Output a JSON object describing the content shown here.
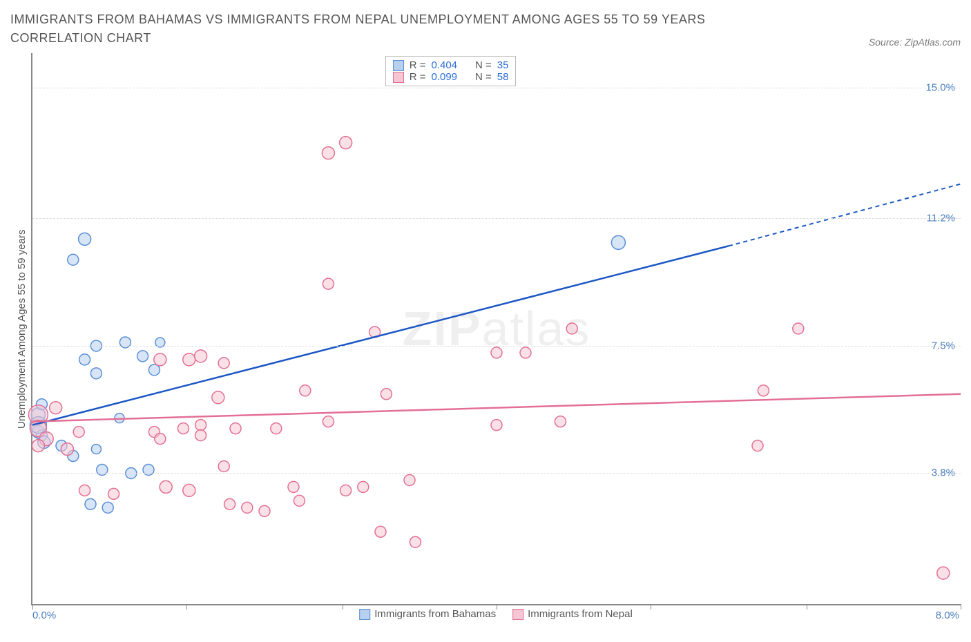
{
  "title": "IMMIGRANTS FROM BAHAMAS VS IMMIGRANTS FROM NEPAL UNEMPLOYMENT AMONG AGES 55 TO 59 YEARS CORRELATION CHART",
  "source_label": "Source: ZipAtlas.com",
  "y_axis_label": "Unemployment Among Ages 55 to 59 years",
  "watermark_a": "ZIP",
  "watermark_b": "atlas",
  "chart": {
    "type": "scatter",
    "background_color": "#ffffff",
    "grid_color": "#dddddd",
    "axis_color": "#888888",
    "xlim": [
      0.0,
      8.0
    ],
    "ylim": [
      0.0,
      16.0
    ],
    "x_ticks": [
      0.0,
      1.33,
      2.67,
      4.0,
      5.33,
      6.67,
      8.0
    ],
    "y_gridlines": [
      3.8,
      7.5,
      11.2,
      15.0
    ],
    "y_tick_labels": [
      "3.8%",
      "7.5%",
      "11.2%",
      "15.0%"
    ],
    "x_min_label": "0.0%",
    "x_max_label": "8.0%",
    "legend_box": {
      "rows": [
        {
          "swatch_fill": "#b6d0ee",
          "swatch_stroke": "#5a8fd6",
          "r_label": "R =",
          "r_val": "0.404",
          "n_label": "N =",
          "n_val": "35"
        },
        {
          "swatch_fill": "#f6c6d4",
          "swatch_stroke": "#e36f94",
          "r_label": "R =",
          "r_val": "0.099",
          "n_label": "N =",
          "n_val": "58"
        }
      ]
    },
    "x_legend": [
      {
        "swatch_fill": "#b6d0ee",
        "swatch_stroke": "#5a8fd6",
        "label": "Immigrants from Bahamas"
      },
      {
        "swatch_fill": "#f6c6d4",
        "swatch_stroke": "#e36f94",
        "label": "Immigrants from Nepal"
      }
    ],
    "series": [
      {
        "name": "bahamas",
        "fill": "#b6d0ee",
        "stroke": "#5a8fd6",
        "trend_color": "#1b57c4",
        "trend_solid": {
          "x1": 0.0,
          "y1": 5.2,
          "x2": 6.0,
          "y2": 10.4
        },
        "trend_dash": {
          "x1": 6.0,
          "y1": 10.4,
          "x2": 8.0,
          "y2": 12.2
        },
        "points": [
          {
            "x": 0.05,
            "y": 5.5,
            "r": 10
          },
          {
            "x": 0.05,
            "y": 5.0,
            "r": 9
          },
          {
            "x": 0.08,
            "y": 4.9,
            "r": 8
          },
          {
            "x": 0.45,
            "y": 10.6,
            "r": 9
          },
          {
            "x": 0.35,
            "y": 10.0,
            "r": 8
          },
          {
            "x": 0.55,
            "y": 7.5,
            "r": 8
          },
          {
            "x": 0.45,
            "y": 7.1,
            "r": 8
          },
          {
            "x": 0.55,
            "y": 6.7,
            "r": 8
          },
          {
            "x": 0.8,
            "y": 7.6,
            "r": 8
          },
          {
            "x": 0.75,
            "y": 5.4,
            "r": 7
          },
          {
            "x": 0.25,
            "y": 4.6,
            "r": 8
          },
          {
            "x": 0.35,
            "y": 4.3,
            "r": 8
          },
          {
            "x": 0.55,
            "y": 4.5,
            "r": 7
          },
          {
            "x": 0.6,
            "y": 3.9,
            "r": 8
          },
          {
            "x": 0.85,
            "y": 3.8,
            "r": 8
          },
          {
            "x": 1.0,
            "y": 3.9,
            "r": 8
          },
          {
            "x": 0.5,
            "y": 2.9,
            "r": 8
          },
          {
            "x": 0.65,
            "y": 2.8,
            "r": 8
          },
          {
            "x": 0.95,
            "y": 7.2,
            "r": 8
          },
          {
            "x": 1.1,
            "y": 7.6,
            "r": 7
          },
          {
            "x": 1.05,
            "y": 6.8,
            "r": 8
          },
          {
            "x": 0.05,
            "y": 5.2,
            "r": 12
          },
          {
            "x": 0.1,
            "y": 4.7,
            "r": 9
          },
          {
            "x": 0.08,
            "y": 5.8,
            "r": 8
          },
          {
            "x": 5.05,
            "y": 10.5,
            "r": 10
          }
        ]
      },
      {
        "name": "nepal",
        "fill": "#f6c6d4",
        "stroke": "#e36f94",
        "trend_color": "#e36f94",
        "trend_solid": {
          "x1": 0.0,
          "y1": 5.3,
          "x2": 8.0,
          "y2": 6.1
        },
        "trend_dash": null,
        "points": [
          {
            "x": 0.05,
            "y": 5.5,
            "r": 14
          },
          {
            "x": 0.05,
            "y": 5.1,
            "r": 12
          },
          {
            "x": 0.12,
            "y": 4.8,
            "r": 10
          },
          {
            "x": 0.05,
            "y": 4.6,
            "r": 9
          },
          {
            "x": 0.3,
            "y": 4.5,
            "r": 9
          },
          {
            "x": 0.2,
            "y": 5.7,
            "r": 9
          },
          {
            "x": 0.4,
            "y": 5.0,
            "r": 8
          },
          {
            "x": 0.45,
            "y": 3.3,
            "r": 8
          },
          {
            "x": 0.7,
            "y": 3.2,
            "r": 8
          },
          {
            "x": 1.1,
            "y": 7.1,
            "r": 9
          },
          {
            "x": 1.35,
            "y": 7.1,
            "r": 9
          },
          {
            "x": 1.45,
            "y": 7.2,
            "r": 9
          },
          {
            "x": 1.05,
            "y": 5.0,
            "r": 8
          },
          {
            "x": 1.1,
            "y": 4.8,
            "r": 8
          },
          {
            "x": 1.3,
            "y": 5.1,
            "r": 8
          },
          {
            "x": 1.45,
            "y": 5.2,
            "r": 8
          },
          {
            "x": 1.45,
            "y": 4.9,
            "r": 8
          },
          {
            "x": 1.6,
            "y": 6.0,
            "r": 9
          },
          {
            "x": 1.65,
            "y": 7.0,
            "r": 8
          },
          {
            "x": 1.15,
            "y": 3.4,
            "r": 9
          },
          {
            "x": 1.35,
            "y": 3.3,
            "r": 9
          },
          {
            "x": 1.75,
            "y": 5.1,
            "r": 8
          },
          {
            "x": 1.65,
            "y": 4.0,
            "r": 8
          },
          {
            "x": 1.7,
            "y": 2.9,
            "r": 8
          },
          {
            "x": 1.85,
            "y": 2.8,
            "r": 8
          },
          {
            "x": 2.1,
            "y": 5.1,
            "r": 8
          },
          {
            "x": 2.0,
            "y": 2.7,
            "r": 8
          },
          {
            "x": 2.25,
            "y": 3.4,
            "r": 8
          },
          {
            "x": 2.3,
            "y": 3.0,
            "r": 8
          },
          {
            "x": 2.35,
            "y": 6.2,
            "r": 8
          },
          {
            "x": 2.55,
            "y": 13.1,
            "r": 9
          },
          {
            "x": 2.7,
            "y": 13.4,
            "r": 9
          },
          {
            "x": 2.55,
            "y": 9.3,
            "r": 8
          },
          {
            "x": 2.55,
            "y": 5.3,
            "r": 8
          },
          {
            "x": 2.7,
            "y": 3.3,
            "r": 8
          },
          {
            "x": 2.85,
            "y": 3.4,
            "r": 8
          },
          {
            "x": 2.95,
            "y": 7.9,
            "r": 8
          },
          {
            "x": 3.05,
            "y": 6.1,
            "r": 8
          },
          {
            "x": 3.0,
            "y": 2.1,
            "r": 8
          },
          {
            "x": 3.3,
            "y": 1.8,
            "r": 8
          },
          {
            "x": 3.25,
            "y": 3.6,
            "r": 8
          },
          {
            "x": 4.0,
            "y": 5.2,
            "r": 8
          },
          {
            "x": 4.0,
            "y": 7.3,
            "r": 8
          },
          {
            "x": 4.25,
            "y": 7.3,
            "r": 8
          },
          {
            "x": 4.55,
            "y": 5.3,
            "r": 8
          },
          {
            "x": 4.65,
            "y": 8.0,
            "r": 8
          },
          {
            "x": 6.3,
            "y": 6.2,
            "r": 8
          },
          {
            "x": 6.25,
            "y": 4.6,
            "r": 8
          },
          {
            "x": 6.6,
            "y": 8.0,
            "r": 8
          },
          {
            "x": 7.85,
            "y": 0.9,
            "r": 9
          }
        ]
      }
    ]
  }
}
